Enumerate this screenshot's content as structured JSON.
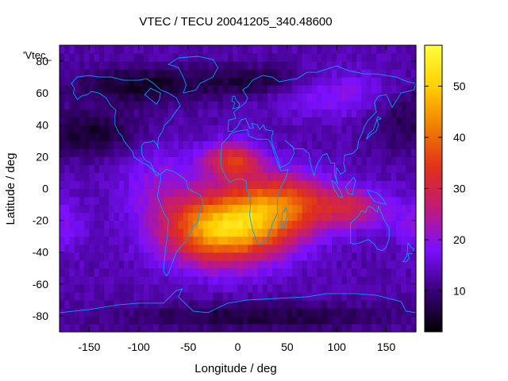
{
  "chart_data": {
    "type": "heatmap",
    "title": "VTEC / TECU 20041205_340.48600",
    "xlabel": "Longitude / deg",
    "ylabel": "Latitude / deg",
    "xlim": [
      -180,
      180
    ],
    "ylim": [
      -90,
      90
    ],
    "x_ticks": [
      -150,
      -100,
      -50,
      0,
      50,
      100,
      150
    ],
    "y_ticks": [
      -80,
      -60,
      -40,
      -20,
      0,
      20,
      40,
      60,
      80
    ],
    "series_label": "'Vtec_",
    "colorbar": {
      "range": [
        2,
        58
      ],
      "ticks": [
        10,
        20,
        30,
        40,
        50
      ],
      "colormap": [
        "#000000",
        "#3a0078",
        "#7a10ff",
        "#c01a7a",
        "#e0301a",
        "#f07e00",
        "#ffd000",
        "#ffff40"
      ]
    },
    "map_overlay": "coastlines",
    "coastline_color": "#00a0ff",
    "peak": {
      "lon": -15,
      "lat": -25,
      "vtec": 55
    },
    "crest": {
      "lon": -5,
      "lat": 18,
      "vtec": 48
    }
  }
}
